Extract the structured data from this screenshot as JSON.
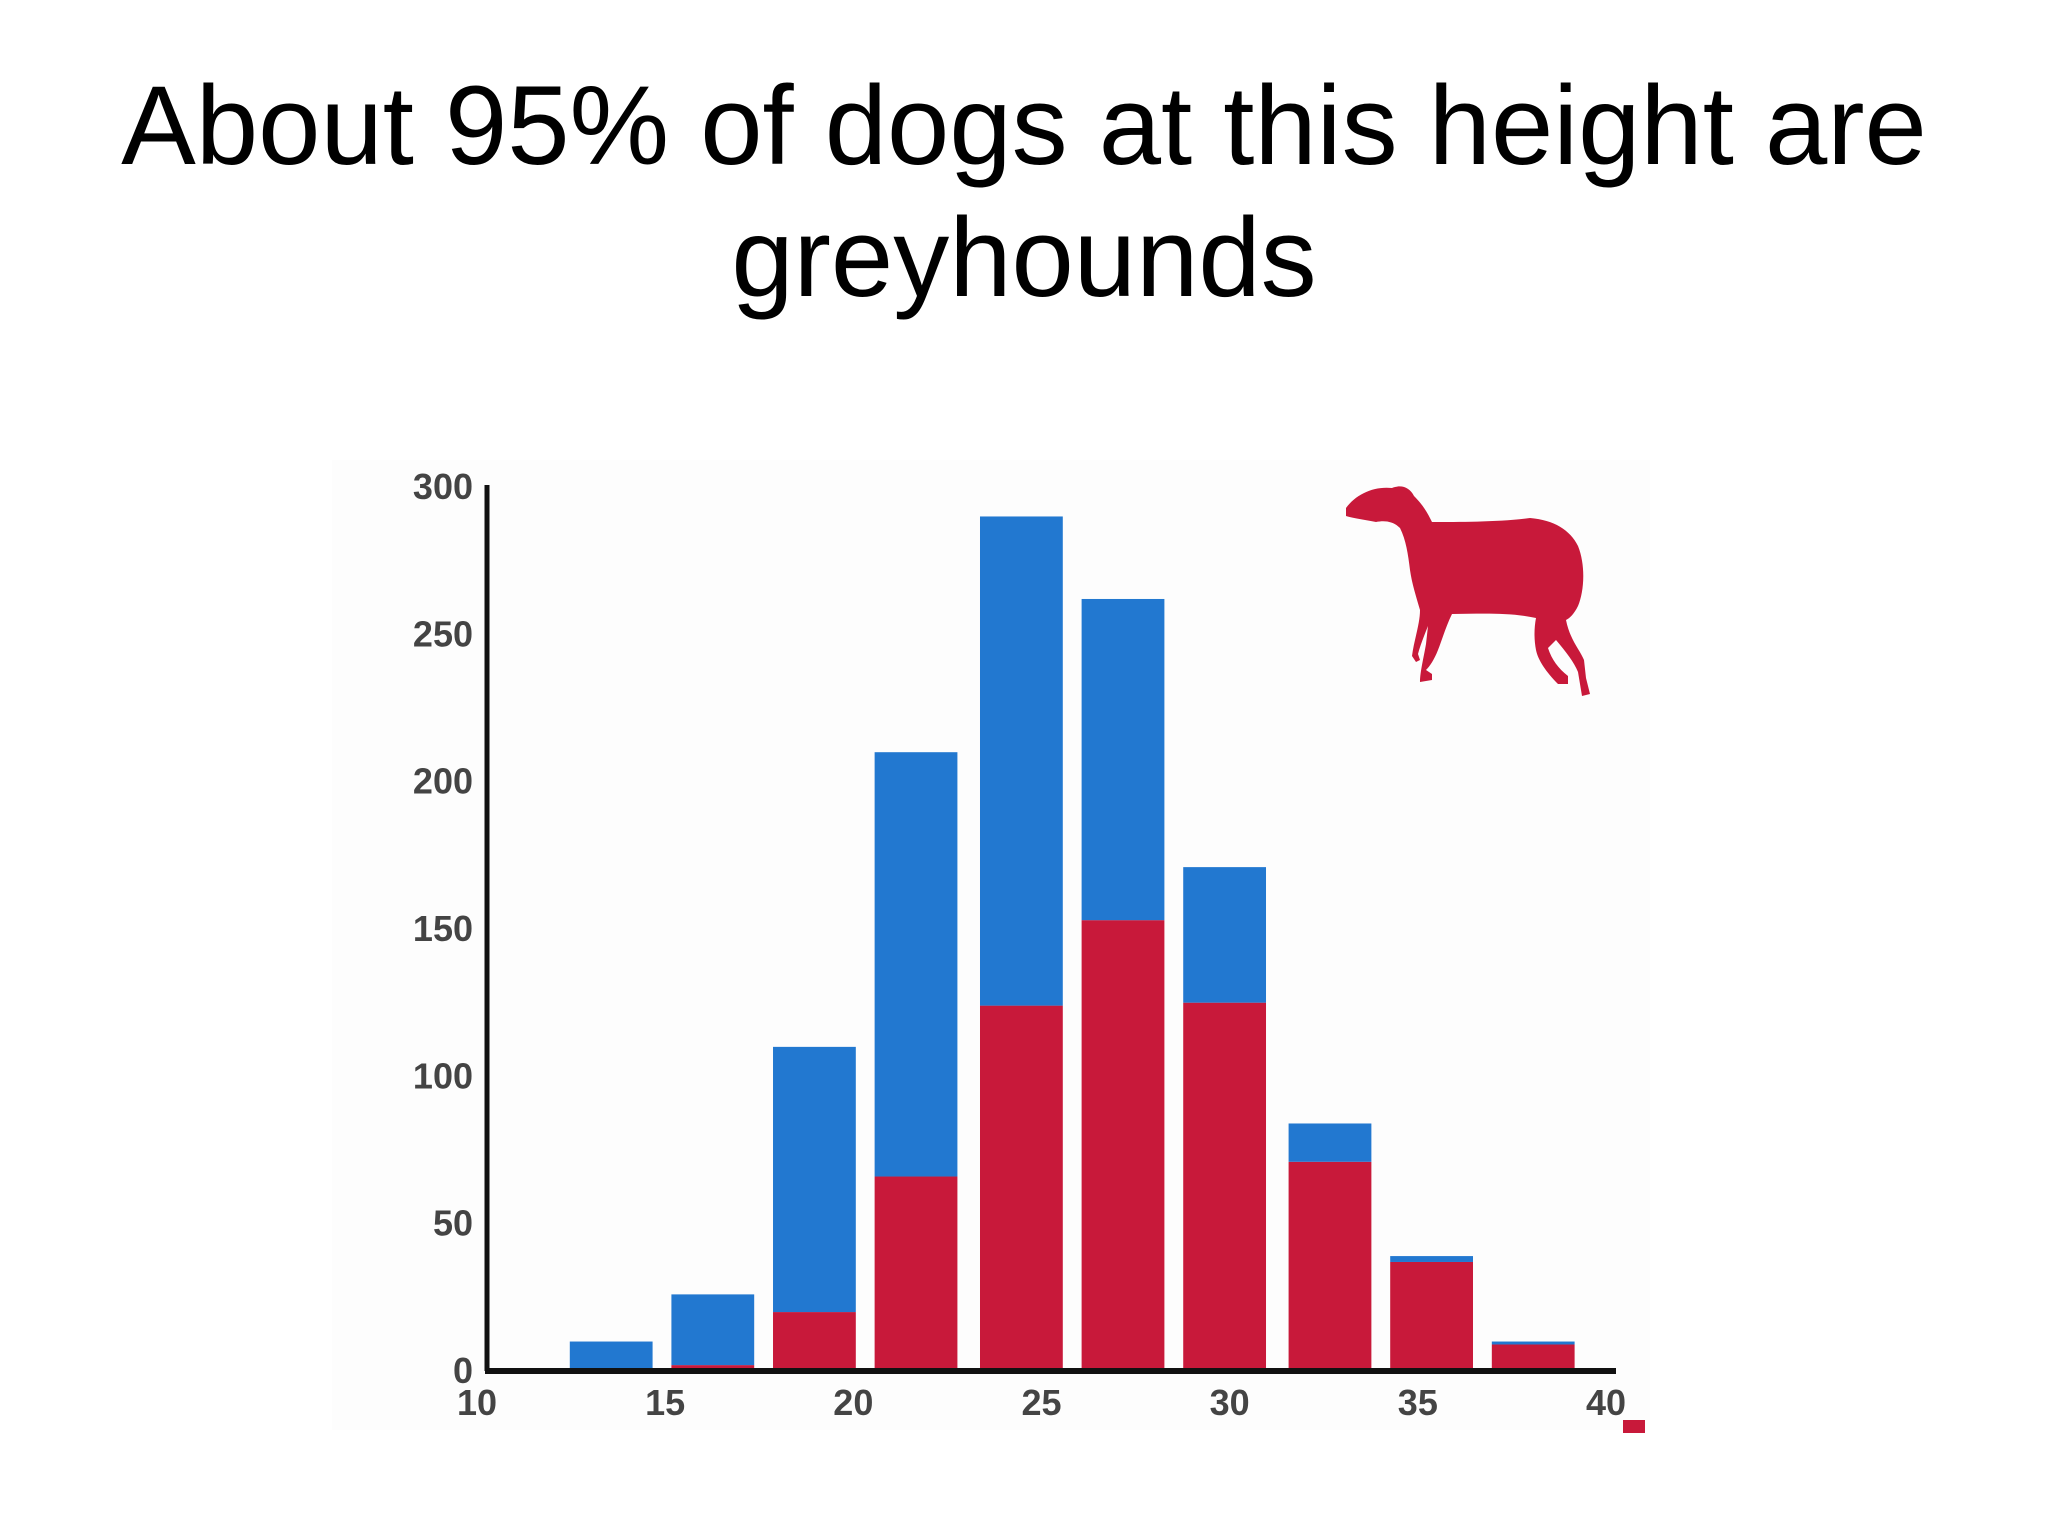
{
  "slide": {
    "title": "About 95% of dogs at this height are greyhounds"
  },
  "chart_data": {
    "type": "bar",
    "stacked": true,
    "x_ticks": [
      10,
      15,
      20,
      25,
      30,
      35,
      40
    ],
    "y_ticks": [
      0,
      50,
      100,
      150,
      200,
      250,
      300
    ],
    "xlim": [
      10,
      40
    ],
    "ylim": [
      0,
      300
    ],
    "bins": [
      {
        "x0": 12.2,
        "x1": 14.4
      },
      {
        "x0": 14.9,
        "x1": 17.1
      },
      {
        "x0": 17.6,
        "x1": 19.8
      },
      {
        "x0": 20.3,
        "x1": 22.5
      },
      {
        "x0": 23.1,
        "x1": 25.3
      },
      {
        "x0": 25.8,
        "x1": 28.0
      },
      {
        "x0": 28.5,
        "x1": 30.7
      },
      {
        "x0": 31.3,
        "x1": 33.5
      },
      {
        "x0": 34.0,
        "x1": 36.2
      },
      {
        "x0": 36.7,
        "x1": 38.9
      }
    ],
    "series": [
      {
        "color": "#c8193a",
        "values": [
          0,
          2,
          20,
          66,
          124,
          153,
          125,
          71,
          37,
          9
        ]
      },
      {
        "color": "#2278d0",
        "values": [
          10,
          24,
          90,
          144,
          166,
          109,
          46,
          13,
          2,
          1
        ]
      }
    ],
    "grid": false,
    "legend": "none",
    "annotations": [
      {
        "type": "icon",
        "name": "greyhound-icon",
        "color": "#c8193a",
        "position": "top-right"
      }
    ]
  }
}
